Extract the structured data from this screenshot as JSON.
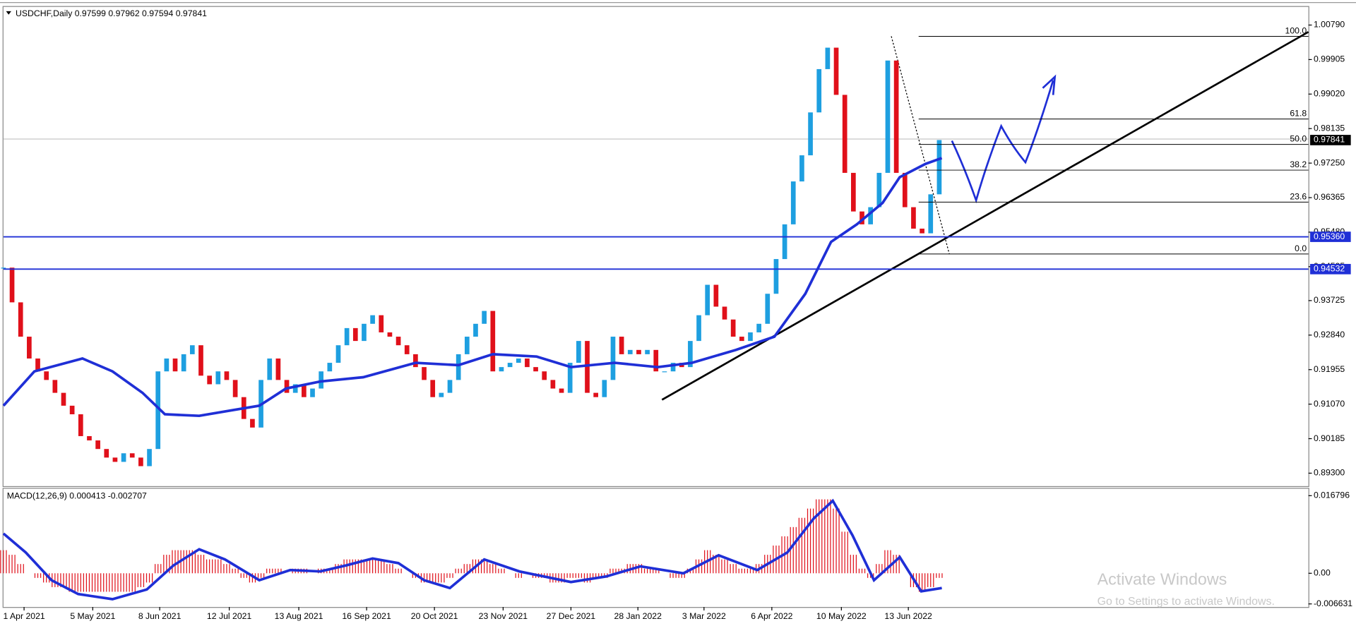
{
  "chart_data": [
    {
      "type": "candlestick",
      "title": "USDCHF,Daily  0.97599 0.97962 0.97594 0.97841",
      "up_color": "#1e9fe0",
      "down_color": "#e0101a",
      "xlim": [
        0,
        152
      ],
      "ylim": [
        0.88968,
        1.01255
      ],
      "xticks": [
        {
          "value": 2.4,
          "label": "1 Apr 2021"
        },
        {
          "value": 10.4,
          "label": "5 May 2021"
        },
        {
          "value": 18.2,
          "label": "8 Jun 2021"
        },
        {
          "value": 26.3,
          "label": "12 Jul 2021"
        },
        {
          "value": 34.4,
          "label": "13 Aug 2021"
        },
        {
          "value": 42.3,
          "label": "16 Sep 2021"
        },
        {
          "value": 50.2,
          "label": "20 Oct 2021"
        },
        {
          "value": 58.2,
          "label": "23 Nov 2021"
        },
        {
          "value": 66.1,
          "label": "27 Dec 2021"
        },
        {
          "value": 73.9,
          "label": "28 Jan 2022"
        },
        {
          "value": 81.6,
          "label": "3 Mar 2022"
        },
        {
          "value": 89.5,
          "label": "6 Apr 2022"
        },
        {
          "value": 97.6,
          "label": "10 May 2022"
        },
        {
          "value": 105.4,
          "label": "13 Jun 2022"
        }
      ],
      "yticks": [
        {
          "value": 1.0079,
          "label": "1.00790"
        },
        0.99905,
        {
          "value": 0.9902,
          "label": "0.99020"
        },
        0.98135,
        {
          "value": 0.9725,
          "label": "0.97250"
        },
        0.96365,
        {
          "value": 0.9548,
          "label": "0.95480"
        },
        0.94595,
        0.93725,
        {
          "value": 0.9284,
          "label": "0.92840"
        },
        0.91955,
        {
          "value": 0.9107,
          "label": "0.91070"
        },
        0.90185,
        {
          "value": 0.893,
          "label": "0.89300"
        }
      ],
      "values": [
        0.9457,
        0.9368,
        0.928,
        0.9224,
        0.9191,
        0.9169,
        0.9136,
        0.9103,
        0.9081,
        0.9025,
        0.9014,
        0.8992,
        0.897,
        0.8959,
        0.8981,
        0.897,
        0.8948,
        0.8992,
        0.9191,
        0.9224,
        0.9191,
        0.9235,
        0.9258,
        0.918,
        0.9158,
        0.9191,
        0.9169,
        0.9125,
        0.9069,
        0.9047,
        0.9169,
        0.9224,
        0.9169,
        0.9136,
        0.9158,
        0.9125,
        0.9147,
        0.9191,
        0.9213,
        0.9258,
        0.9302,
        0.9269,
        0.9313,
        0.9335,
        0.9291,
        0.928,
        0.9258,
        0.9235,
        0.9202,
        0.9169,
        0.9125,
        0.9136,
        0.9169,
        0.9235,
        0.928,
        0.9313,
        0.9346,
        0.9191,
        0.9202,
        0.9213,
        0.9224,
        0.9202,
        0.9191,
        0.9169,
        0.9147,
        0.9136,
        0.9213,
        0.9269,
        0.9136,
        0.9125,
        0.9169,
        0.928,
        0.9235,
        0.9246,
        0.9235,
        0.9246,
        0.9191,
        0.9191,
        0.9213,
        0.9202,
        0.9269,
        0.9335,
        0.9413,
        0.9357,
        0.9324,
        0.928,
        0.9269,
        0.9291,
        0.9313,
        0.939,
        0.9479,
        0.9568,
        0.9678,
        0.9745,
        0.9855,
        0.9966,
        1.0021,
        0.99,
        0.97,
        0.9601,
        0.9568,
        0.9612,
        0.97,
        0.9988,
        0.97,
        0.9612,
        0.9557,
        0.9545,
        0.9645,
        0.97841
      ],
      "ma": {
        "color": "#1f2fd6",
        "x": [
          0,
          3.6,
          9.2,
          12.7,
          16.2,
          18.8,
          22.8,
          26.8,
          29.8,
          32.9,
          36.9,
          41.9,
          48,
          53,
          57,
          62.1,
          66.1,
          71.2,
          76.2,
          80.2,
          85.3,
          89.8,
          93.4,
          96.4,
          99.4,
          102.4,
          104.4,
          107.4,
          109.3
        ],
        "values": [
          0.9103,
          0.9191,
          0.9224,
          0.9191,
          0.9136,
          0.9081,
          0.9077,
          0.9092,
          0.9103,
          0.9147,
          0.9165,
          0.9176,
          0.9213,
          0.9207,
          0.9235,
          0.9229,
          0.9202,
          0.9213,
          0.9202,
          0.9213,
          0.9246,
          0.928,
          0.939,
          0.9523,
          0.9568,
          0.9623,
          0.9689,
          0.9723,
          0.9738
        ]
      },
      "hlines": [
        {
          "value": 0.9536,
          "label": "0.95360"
        },
        {
          "value": 0.94532,
          "label": "0.94532"
        }
      ],
      "hline_color": "#1f2fd6",
      "current_price": 0.97841,
      "fib_levels": [
        {
          "value": 1.005,
          "label": "100.0"
        },
        {
          "value": 0.9838,
          "label": "61.8"
        },
        {
          "value": 0.9773,
          "label": "50.0"
        },
        {
          "value": 0.9707,
          "label": "38.2"
        },
        {
          "value": 0.9625,
          "label": "23.6"
        },
        {
          "value": 0.9492,
          "label": "0.0"
        }
      ],
      "fib_start": 106.6
    },
    {
      "type": "macd",
      "title": "MACD(12,26,9) 0.000413 -0.002707",
      "xlim": [
        0,
        152
      ],
      "ylim": [
        -0.0073,
        0.0183
      ],
      "yticks": [
        0.016796,
        {
          "value": 0,
          "label": "0.00"
        },
        -0.006631
      ],
      "color": "#e0101a",
      "values": [
        0.005,
        0.004,
        0.002,
        0,
        -0.001,
        -0.002,
        -0.003,
        -0.003,
        -0.004,
        -0.004,
        -0.004,
        -0.004,
        -0.004,
        -0.004,
        -0.004,
        -0.004,
        -0.003,
        -0.002,
        0.002,
        0.004,
        0.005,
        0.005,
        0.005,
        0.004,
        0.003,
        0.003,
        0.002,
        0.001,
        -0.001,
        -0.002,
        -0.001,
        0.001,
        0.001,
        0,
        0.001,
        0.001,
        0,
        0.001,
        0.001,
        0.002,
        0.003,
        0.003,
        0.003,
        0.003,
        0.003,
        0.002,
        0.001,
        0,
        -0.001,
        -0.002,
        -0.002,
        -0.002,
        -0.001,
        0.001,
        0.002,
        0.003,
        0.003,
        0.002,
        0.001,
        0,
        -0.001,
        0,
        -0.001,
        -0.001,
        -0.002,
        -0.002,
        -0.001,
        -0.001,
        -0.002,
        -0.001,
        -0.001,
        0.001,
        0.001,
        0.002,
        0.002,
        0.001,
        0.001,
        0,
        -0.001,
        -0.001,
        0.001,
        0.003,
        0.005,
        0.004,
        0.003,
        0.002,
        0.001,
        0.001,
        0.002,
        0.004,
        0.006,
        0.008,
        0.01,
        0.012,
        0.014,
        0.016,
        0.016,
        0.014,
        0.009,
        0.004,
        0.001,
        -0.001,
        0.002,
        0.005,
        0.004,
        0,
        -0.003,
        -0.004,
        -0.003,
        -0.001
      ],
      "signal": {
        "color": "#1f2fd6",
        "x": [
          0,
          2.6,
          5.6,
          8.7,
          12.7,
          16.7,
          19.8,
          22.8,
          25.8,
          29.8,
          33.4,
          36.9,
          39.9,
          43,
          46,
          49,
          52,
          56,
          60.1,
          66.1,
          70.2,
          74.2,
          79.2,
          83.3,
          87.8,
          91.3,
          94.4,
          96.6,
          98.9,
          101.4,
          104.4,
          106.9,
          109.3
        ],
        "values": [
          0.0086,
          0.0045,
          -0.0015,
          -0.0045,
          -0.0056,
          -0.0035,
          0.0017,
          0.0052,
          0.003,
          -0.0015,
          0.0007,
          0.0004,
          0.0017,
          0.0032,
          0.0022,
          -0.0015,
          -0.0032,
          0.003,
          0.0004,
          -0.0019,
          -0.0007,
          0.0015,
          0,
          0.0039,
          0.0007,
          0.0045,
          0.0119,
          0.0157,
          0.0082,
          -0.0015,
          0.0035,
          -0.0039,
          -0.0032
        ]
      }
    }
  ],
  "watermark": {
    "title": "Activate Windows",
    "subtitle": "Go to Settings to activate Windows."
  }
}
